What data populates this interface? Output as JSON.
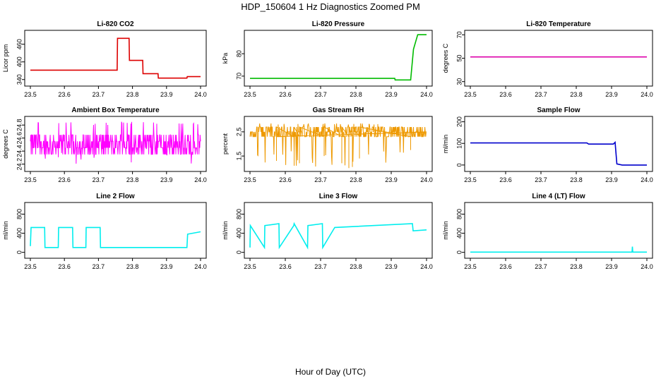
{
  "title": "HDP_150604  1 Hz Diagnostics Zoomed PM",
  "xlabel": "Hour of Day (UTC)",
  "chart_data": [
    {
      "type": "line",
      "title": "Li-820 CO2",
      "ylabel": "Licor ppm",
      "color": "#dd0000",
      "xticks": [
        "23.5",
        "23.6",
        "23.7",
        "23.8",
        "23.9",
        "24.0"
      ],
      "xlim": [
        23.5,
        24.0
      ],
      "yticks": [
        340,
        400,
        460
      ],
      "ytick_labels": [
        "340",
        "400",
        "460"
      ],
      "ylim": [
        325,
        500
      ],
      "series": [
        {
          "x": [
            23.5,
            23.755,
            23.756,
            23.79,
            23.791,
            23.83,
            23.831,
            23.875,
            23.876,
            23.96,
            23.961,
            24.0
          ],
          "y": [
            372,
            372,
            480,
            480,
            405,
            405,
            360,
            360,
            345,
            345,
            350,
            350
          ]
        }
      ]
    },
    {
      "type": "line",
      "title": "Li-820 Pressure",
      "ylabel": "kPa",
      "color": "#00bb00",
      "xticks": [
        "23.5",
        "23.6",
        "23.7",
        "23.8",
        "23.9",
        "24.0"
      ],
      "xlim": [
        23.5,
        24.0
      ],
      "yticks": [
        70,
        80
      ],
      "ytick_labels": [
        "70",
        "80"
      ],
      "ylim": [
        66.5,
        89.5
      ],
      "series": [
        {
          "x": [
            23.5,
            23.91,
            23.911,
            23.955,
            23.963,
            23.975,
            24.0
          ],
          "y": [
            69,
            69,
            68.3,
            68.3,
            82,
            88.5,
            88.5
          ]
        }
      ]
    },
    {
      "type": "line",
      "title": "Li-820 Temperature",
      "ylabel": "degrees C",
      "color": "#dd00aa",
      "xticks": [
        "23.5",
        "23.6",
        "23.7",
        "23.8",
        "23.9",
        "24.0"
      ],
      "xlim": [
        23.5,
        24.0
      ],
      "yticks": [
        30,
        50,
        70
      ],
      "ytick_labels": [
        "30",
        "50",
        "70"
      ],
      "ylim": [
        28,
        72
      ],
      "series": [
        {
          "x": [
            23.5,
            24.0
          ],
          "y": [
            51.1,
            51.1
          ]
        }
      ]
    },
    {
      "type": "line",
      "title": "Ambient Box Temperature",
      "ylabel": "degrees C",
      "color": "#ff00ff",
      "xticks": [
        "23.5",
        "23.6",
        "23.7",
        "23.8",
        "23.9",
        "24.0"
      ],
      "xlim": [
        23.5,
        24.0
      ],
      "yticks": [
        24.2,
        24.4,
        24.6,
        24.8
      ],
      "ytick_labels": [
        "24.2",
        "24.4",
        "24.6",
        "24.8"
      ],
      "ylim": [
        24.12,
        24.9
      ],
      "noise": {
        "base": [
          24.35,
          24.45,
          24.55,
          24.65
        ],
        "min": 24.2,
        "max": 24.85
      }
    },
    {
      "type": "line",
      "title": "Gas Stream RH",
      "ylabel": "percent",
      "color": "#ee9900",
      "xticks": [
        "23.5",
        "23.6",
        "23.7",
        "23.8",
        "23.9",
        "24.0"
      ],
      "xlim": [
        23.5,
        24.0
      ],
      "yticks": [
        1.5,
        2.5
      ],
      "ytick_labels": [
        "1.5",
        "2.5"
      ],
      "ylim": [
        0.95,
        3.05
      ],
      "noise": {
        "base": [
          2.3,
          2.5,
          2.7
        ],
        "min": 1.0,
        "max": 2.85
      },
      "dips": [
        [
          23.575,
          1.3
        ],
        [
          23.625,
          1.1
        ],
        [
          23.64,
          1.2
        ],
        [
          23.71,
          1.5
        ],
        [
          23.76,
          1.2
        ],
        [
          23.78,
          1.0
        ],
        [
          23.79,
          1.05
        ],
        [
          23.81,
          1.4
        ],
        [
          23.955,
          1.75
        ]
      ]
    },
    {
      "type": "line",
      "title": "Sample Flow",
      "ylabel": "ml/min",
      "color": "#0000cc",
      "xticks": [
        "23.5",
        "23.6",
        "23.7",
        "23.8",
        "23.9",
        "24.0"
      ],
      "xlim": [
        23.5,
        24.0
      ],
      "yticks": [
        0,
        100,
        200
      ],
      "ytick_labels": [
        "0",
        "100",
        "200"
      ],
      "ylim": [
        -20,
        215
      ],
      "series": [
        {
          "x": [
            23.5,
            23.83,
            23.835,
            23.905,
            23.91,
            23.915,
            23.93,
            24.0
          ],
          "y": [
            102,
            102,
            97,
            97,
            105,
            5,
            0,
            0
          ]
        }
      ]
    },
    {
      "type": "line",
      "title": "Line 2 Flow",
      "ylabel": "ml/min",
      "color": "#00eeee",
      "xticks": [
        "23.5",
        "23.6",
        "23.7",
        "23.8",
        "23.9",
        "24.0"
      ],
      "xlim": [
        23.5,
        24.0
      ],
      "yticks": [
        0,
        400,
        800
      ],
      "ytick_labels": [
        "0",
        "400",
        "800"
      ],
      "ylim": [
        -80,
        1000
      ],
      "series": [
        {
          "x": [
            23.5,
            23.502,
            23.542,
            23.543,
            23.582,
            23.583,
            23.624,
            23.625,
            23.663,
            23.664,
            23.705,
            23.706,
            23.96,
            23.962,
            24.0
          ],
          "y": [
            130,
            520,
            520,
            100,
            100,
            520,
            520,
            100,
            100,
            520,
            520,
            100,
            100,
            380,
            430
          ]
        }
      ]
    },
    {
      "type": "line",
      "title": "Line 3 Flow",
      "ylabel": "ml/min",
      "color": "#00eeee",
      "xticks": [
        "23.5",
        "23.6",
        "23.7",
        "23.8",
        "23.9",
        "24.0"
      ],
      "xlim": [
        23.5,
        24.0
      ],
      "yticks": [
        0,
        400,
        800
      ],
      "ytick_labels": [
        "0",
        "400",
        "800"
      ],
      "ylim": [
        -80,
        1000
      ],
      "series": [
        {
          "x": [
            23.5,
            23.501,
            23.541,
            23.542,
            23.582,
            23.583,
            23.624,
            23.625,
            23.663,
            23.664,
            23.705,
            23.706,
            23.74,
            23.96,
            23.962,
            24.0
          ],
          "y": [
            100,
            560,
            100,
            560,
            600,
            100,
            560,
            600,
            100,
            560,
            600,
            100,
            520,
            600,
            450,
            470
          ]
        }
      ]
    },
    {
      "type": "line",
      "title": "Line 4 (LT) Flow",
      "ylabel": "ml/min",
      "color": "#00eeee",
      "xticks": [
        "23.5",
        "23.6",
        "23.7",
        "23.8",
        "23.9",
        "24.0"
      ],
      "xlim": [
        23.5,
        24.0
      ],
      "yticks": [
        0,
        400,
        800
      ],
      "ytick_labels": [
        "0",
        "400",
        "800"
      ],
      "ylim": [
        -80,
        1000
      ],
      "series": [
        {
          "x": [
            23.5,
            23.958,
            23.959,
            23.96,
            23.961,
            24.0
          ],
          "y": [
            5,
            5,
            120,
            10,
            5,
            5
          ]
        }
      ]
    }
  ]
}
